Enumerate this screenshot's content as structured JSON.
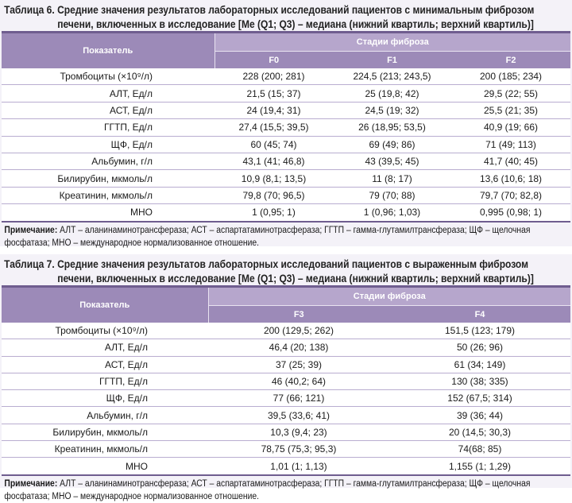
{
  "table6": {
    "caption_line1": "Таблица 6. Средние значения результатов лабораторных исследований пациентов с минимальным фиброзом",
    "caption_line2": "печени, включенных в исследование [Me (Q1; Q3) – медиана (нижний квартиль; верхний квартиль)]",
    "header_indicator": "Показатель",
    "header_stages": "Стадии фиброза",
    "columns": [
      "F0",
      "F1",
      "F2"
    ],
    "rows": [
      {
        "label": "Тромбоциты (×10⁹/л)",
        "values": [
          "228 (200; 281)",
          "224,5 (213; 243,5)",
          "200 (185; 234)"
        ]
      },
      {
        "label": "АЛТ, Ед/л",
        "values": [
          "21,5 (15; 37)",
          "25 (19,8; 42)",
          "29,5 (22; 55)"
        ]
      },
      {
        "label": "АСТ, Ед/л",
        "values": [
          "24 (19,4; 31)",
          "24,5 (19; 32)",
          "25,5 (21; 35)"
        ]
      },
      {
        "label": "ГГТП, Ед/л",
        "values": [
          "27,4 (15,5; 39,5)",
          "26 (18,95; 53,5)",
          "40,9 (19; 66)"
        ]
      },
      {
        "label": "ЩФ, Ед/л",
        "values": [
          "60 (45; 74)",
          "69 (49; 86)",
          "71 (49; 113)"
        ]
      },
      {
        "label": "Альбумин, г/л",
        "values": [
          "43,1 (41; 46,8)",
          "43 (39,5; 45)",
          "41,7 (40; 45)"
        ]
      },
      {
        "label": "Билирубин, мкмоль/л",
        "values": [
          "10,9 (8,1; 13,5)",
          "11 (8; 17)",
          "13,6 (10,6; 18)"
        ]
      },
      {
        "label": "Креатинин, мкмоль/л",
        "values": [
          "79,8 (70; 96,5)",
          "79 (70; 88)",
          "79,7 (70; 82,8)"
        ]
      },
      {
        "label": "МНО",
        "values": [
          "1 (0,95; 1)",
          "1 (0,96; 1,03)",
          "0,995 (0,98; 1)"
        ]
      }
    ],
    "note_label": "Примечание:",
    "note_text": " АЛТ – аланинаминотрансфераза; АСТ – аспартатаминотрасфераза; ГГТП – гамма-глутамилтрансфераза; ЩФ – щелочная фосфатаза; МНО – международное нормализованное отношение."
  },
  "table7": {
    "caption_line1": "Таблица 7. Средние значения результатов лабораторных исследований пациентов с выраженным фиброзом",
    "caption_line2": "печени, включенных в исследование [Me (Q1; Q3) – медиана (нижний квартиль; верхний квартиль)]",
    "header_indicator": "Показатель",
    "header_stages": "Стадии фиброза",
    "columns": [
      "F3",
      "F4"
    ],
    "rows": [
      {
        "label": "Тромбоциты (×10⁹/л)",
        "values": [
          "200 (129,5; 262)",
          "151,5 (123; 179)"
        ]
      },
      {
        "label": "АЛТ, Ед/л",
        "values": [
          "46,4 (20; 138)",
          "50 (26; 96)"
        ]
      },
      {
        "label": "АСТ, Ед/л",
        "values": [
          "37 (25; 39)",
          "61 (34; 149)"
        ]
      },
      {
        "label": "ГГТП, Ед/л",
        "values": [
          "46 (40,2; 64)",
          "130 (38; 335)"
        ]
      },
      {
        "label": "ЩФ, Ед/л",
        "values": [
          "77 (66; 121)",
          "152 (67,5; 314)"
        ]
      },
      {
        "label": "Альбумин, г/л",
        "values": [
          "39,5 (33,6; 41)",
          "39 (36; 44)"
        ]
      },
      {
        "label": "Билирубин, мкмоль/л",
        "values": [
          "10,3 (9,4; 23)",
          "20 (14,5; 30,3)"
        ]
      },
      {
        "label": "Креатинин, мкмоль/л",
        "values": [
          "78,75 (75,3; 95,3)",
          "74(68; 85)"
        ]
      },
      {
        "label": "МНО",
        "values": [
          "1,01 (1; 1,13)",
          "1,155 (1; 1,29)"
        ]
      }
    ],
    "note_label": "Примечание:",
    "note_text": " АЛТ – аланинаминотрансфераза; АСТ – аспартатаминотрасфераза; ГГТП – гамма-глутамилтрансфераза; ЩФ – щелочная фосфатаза; МНО – международное нормализованное отношение."
  }
}
